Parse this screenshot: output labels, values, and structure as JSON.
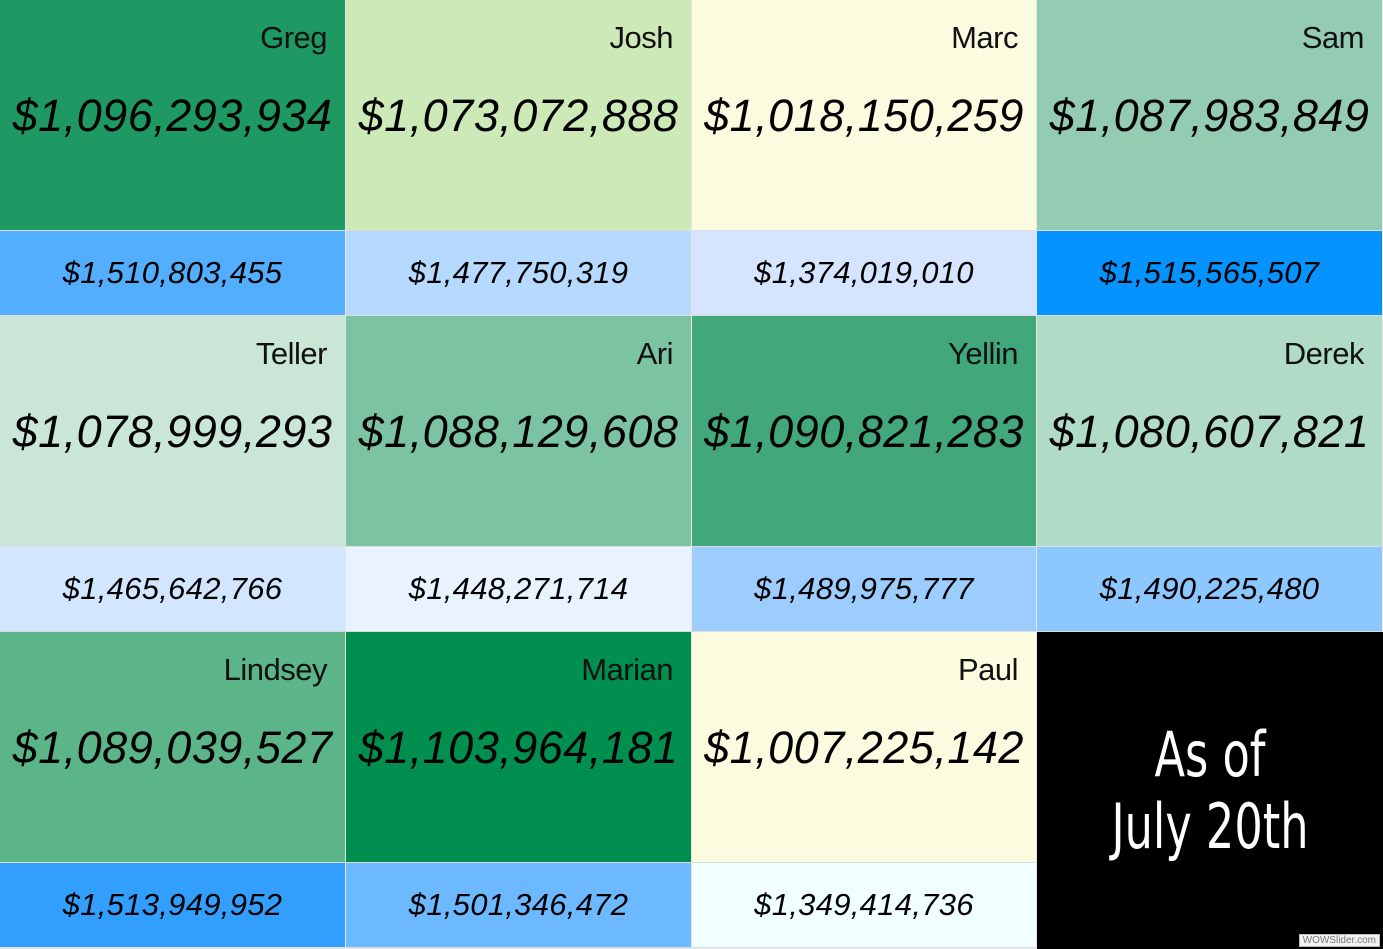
{
  "cells": [
    {
      "name": "Greg",
      "main": "$1,096,293,934",
      "sub": "$1,510,803,455",
      "main_color": "#1f9964",
      "sub_color": "#53aeff"
    },
    {
      "name": "Josh",
      "main": "$1,073,072,888",
      "sub": "$1,477,750,319",
      "main_color": "#cde9b8",
      "sub_color": "#b5d9ff"
    },
    {
      "name": "Marc",
      "main": "$1,018,150,259",
      "sub": "$1,374,019,010",
      "main_color": "#fafbdf",
      "sub_color": "#d6e5ff"
    },
    {
      "name": "Sam",
      "main": "$1,087,983,849",
      "sub": "$1,515,565,507",
      "main_color": "#93ccb2",
      "sub_color": "#0593ff"
    },
    {
      "name": "Teller",
      "main": "$1,078,999,293",
      "sub": "$1,465,642,766",
      "main_color": "#cae6d6",
      "sub_color": "#d3e6ff"
    },
    {
      "name": "Ari",
      "main": "$1,088,129,608",
      "sub": "$1,448,271,714",
      "main_color": "#7cc3a3",
      "sub_color": "#e9f3ff"
    },
    {
      "name": "Yellin",
      "main": "$1,090,821,283",
      "sub": "$1,489,975,777",
      "main_color": "#42a87b",
      "sub_color": "#9dcdff"
    },
    {
      "name": "Derek",
      "main": "$1,080,607,821",
      "sub": "$1,490,225,480",
      "main_color": "#b0dbc6",
      "sub_color": "#8dc7ff"
    },
    {
      "name": "Lindsey",
      "main": "$1,089,039,527",
      "sub": "$1,513,949,952",
      "main_color": "#5cb489",
      "sub_color": "#329fff"
    },
    {
      "name": "Marian",
      "main": "$1,103,964,181",
      "sub": "$1,501,346,472",
      "main_color": "#008f4e",
      "sub_color": "#6db9ff"
    },
    {
      "name": "Paul",
      "main": "$1,007,225,142",
      "sub": "$1,349,414,736",
      "main_color": "#fafbdf",
      "sub_color": "#f0ffff"
    }
  ],
  "as_of": {
    "line1": "As of",
    "line2": "July 20th",
    "background": "#000000"
  },
  "watermark": "WOWSlider.com"
}
